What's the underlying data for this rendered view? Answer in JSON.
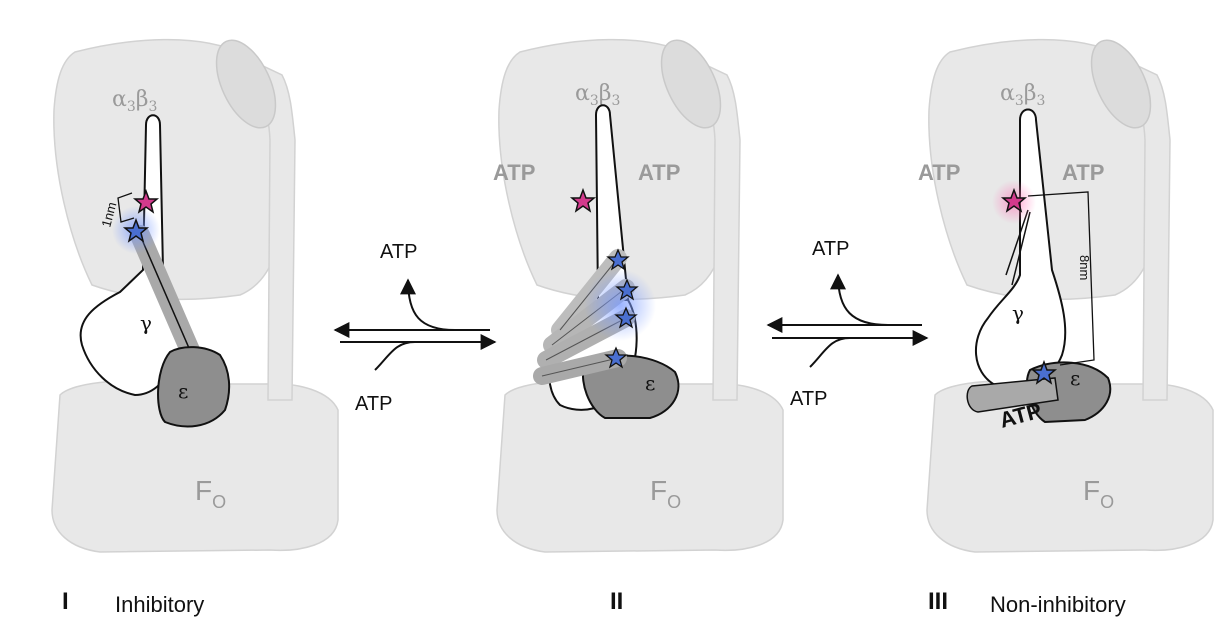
{
  "colors": {
    "body_fill": "#e8e8e8",
    "body_stroke": "#d2d2d2",
    "label_gray": "#9a9a9a",
    "ink": "#111111",
    "epsilon_fill": "#8e8e8e",
    "epsilon_band": "#a9a9a9",
    "star_magenta": "#d23a8c",
    "star_blue": "#4a6fd0"
  },
  "panels": [
    {
      "id": "I",
      "numeral": "I",
      "state_label": "Inhibitory",
      "alpha_beta_label": "α3β3",
      "gamma_label": "γ",
      "epsilon_label": "ε",
      "fo_label": "FO",
      "distance_label": "1nm",
      "atp_labels": []
    },
    {
      "id": "II",
      "numeral": "II",
      "state_label": "",
      "alpha_beta_label": "α3β3",
      "gamma_label": "",
      "epsilon_label": "ε",
      "fo_label": "FO",
      "distance_label": "",
      "atp_labels": [
        "ATP",
        "ATP"
      ]
    },
    {
      "id": "III",
      "numeral": "III",
      "state_label": "Non-inhibitory",
      "alpha_beta_label": "α3β3",
      "gamma_label": "γ",
      "epsilon_label": "ε",
      "fo_label": "FO",
      "distance_label": "8nm",
      "atp_labels": [
        "ATP",
        "ATP"
      ],
      "bound_label": "ATP"
    }
  ],
  "equilibria": [
    {
      "id": "I-II",
      "top_label": "ATP",
      "bottom_label": "ATP"
    },
    {
      "id": "II-III",
      "top_label": "ATP",
      "bottom_label": "ATP"
    }
  ]
}
